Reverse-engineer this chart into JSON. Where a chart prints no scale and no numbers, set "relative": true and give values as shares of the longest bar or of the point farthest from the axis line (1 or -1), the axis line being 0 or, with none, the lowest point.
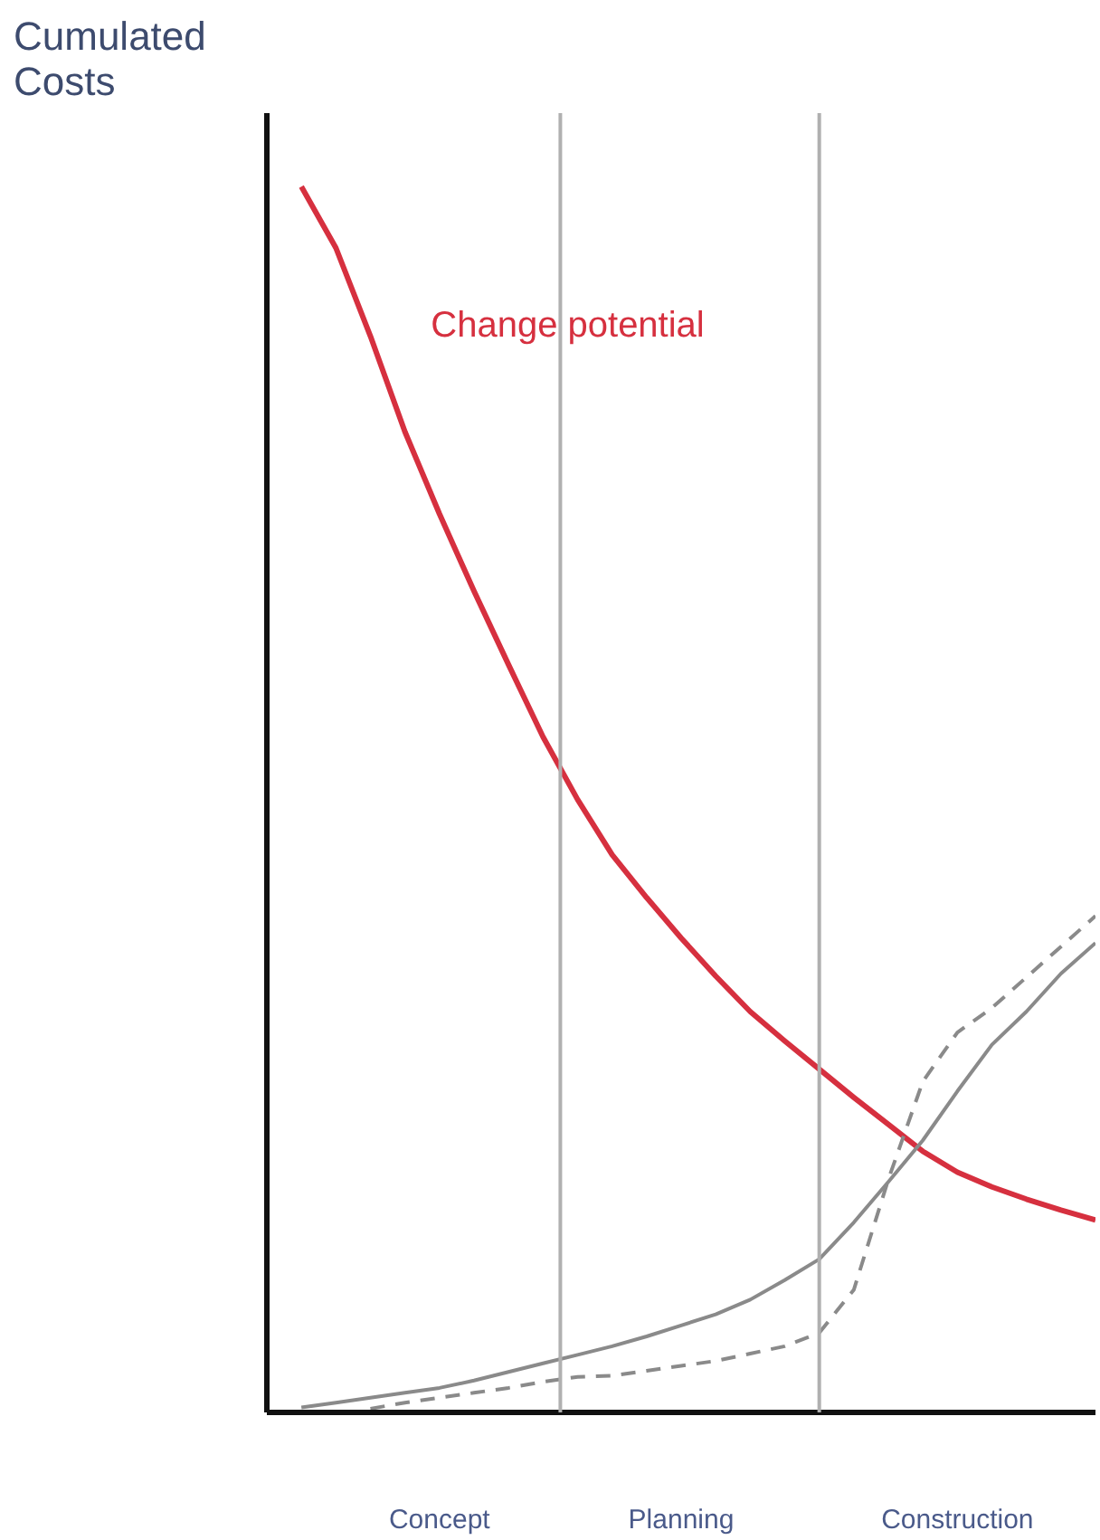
{
  "chart_data": {
    "type": "line",
    "relative": true,
    "ylabel": "Cumulated\nCosts",
    "categories": [
      null,
      null,
      null,
      null,
      null,
      "Concept",
      null,
      null,
      null,
      null,
      null,
      null,
      "Planning",
      null,
      null,
      null,
      null,
      null,
      null,
      null,
      "Construction",
      null,
      null,
      null,
      null
    ],
    "grid": "x",
    "marker": "none",
    "series": [
      {
        "name": "Change potential",
        "color": "#d6303f",
        "line_style": "solid",
        "values": [
          null,
          1.0,
          0.95,
          0.878,
          0.8,
          0.733,
          0.67,
          0.61,
          0.551,
          0.5,
          0.455,
          0.42,
          0.387,
          0.356,
          0.327,
          0.303,
          0.28,
          0.257,
          0.235,
          0.213,
          0.196,
          0.184,
          0.174,
          0.165,
          0.157
        ]
      },
      {
        "color": "#8a8a8a",
        "line_style": "solid",
        "values": [
          null,
          0.004,
          0.008,
          0.012,
          0.016,
          0.02,
          0.026,
          0.033,
          0.04,
          0.047,
          0.054,
          0.062,
          0.071,
          0.08,
          0.092,
          0.108,
          0.125,
          0.155,
          0.188,
          0.222,
          0.262,
          0.3,
          0.327,
          0.358,
          0.383
        ]
      },
      {
        "color": "#8a8a8a",
        "line_style": "dashed",
        "values": [
          null,
          null,
          null,
          0.003,
          0.008,
          0.012,
          0.016,
          0.02,
          0.025,
          0.029,
          0.03,
          0.034,
          0.038,
          0.042,
          0.048,
          0.054,
          0.065,
          0.1,
          0.19,
          0.27,
          0.31,
          0.33,
          0.355,
          0.38,
          0.405
        ]
      }
    ]
  }
}
